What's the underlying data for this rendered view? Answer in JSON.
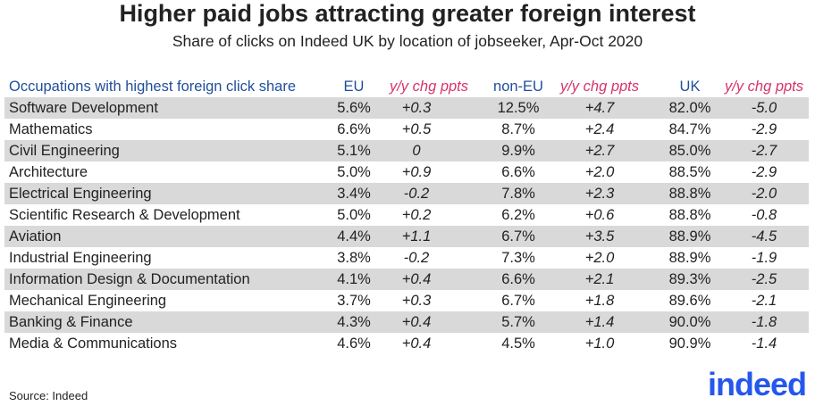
{
  "chart_data": {
    "type": "table",
    "title": "Higher paid jobs attracting greater foreign interest",
    "subtitle": "Share of clicks on Indeed UK by location of jobseeker, Apr-Oct 2020",
    "columns": [
      "Occupations with highest foreign click share",
      "EU",
      "y/y chg ppts",
      "non-EU",
      "y/y chg ppts",
      "UK",
      "y/y chg ppts"
    ],
    "rows": [
      [
        "Software Development",
        "5.6%",
        "+0.3",
        "12.5%",
        "+4.7",
        "82.0%",
        "-5.0"
      ],
      [
        "Mathematics",
        "6.6%",
        "+0.5",
        "8.7%",
        "+2.4",
        "84.7%",
        "-2.9"
      ],
      [
        "Civil Engineering",
        "5.1%",
        "0",
        "9.9%",
        "+2.7",
        "85.0%",
        "-2.7"
      ],
      [
        "Architecture",
        "5.0%",
        "+0.9",
        "6.6%",
        "+2.0",
        "88.5%",
        "-2.9"
      ],
      [
        "Electrical Engineering",
        "3.4%",
        "-0.2",
        "7.8%",
        "+2.3",
        "88.8%",
        "-2.0"
      ],
      [
        "Scientific Research & Development",
        "5.0%",
        "+0.2",
        "6.2%",
        "+0.6",
        "88.8%",
        "-0.8"
      ],
      [
        "Aviation",
        "4.4%",
        "+1.1",
        "6.7%",
        "+3.5",
        "88.9%",
        "-4.5"
      ],
      [
        "Industrial Engineering",
        "3.8%",
        "-0.2",
        "7.3%",
        "+2.0",
        "88.9%",
        "-1.9"
      ],
      [
        "Information Design & Documentation",
        "4.1%",
        "+0.4",
        "6.6%",
        "+2.1",
        "89.3%",
        "-2.5"
      ],
      [
        "Mechanical Engineering",
        "3.7%",
        "+0.3",
        "6.7%",
        "+1.8",
        "89.6%",
        "-2.1"
      ],
      [
        "Banking & Finance",
        "4.3%",
        "+0.4",
        "5.7%",
        "+1.4",
        "90.0%",
        "-1.8"
      ],
      [
        "Media & Communications",
        "4.6%",
        "+0.4",
        "4.5%",
        "+1.0",
        "90.9%",
        "-1.4"
      ]
    ],
    "colors": {
      "header": "#1f4e9c",
      "change_header": "#d6336c",
      "row_shade": "#d9d9d9"
    }
  },
  "footer": {
    "source": "Source: Indeed",
    "logo": "indeed"
  }
}
